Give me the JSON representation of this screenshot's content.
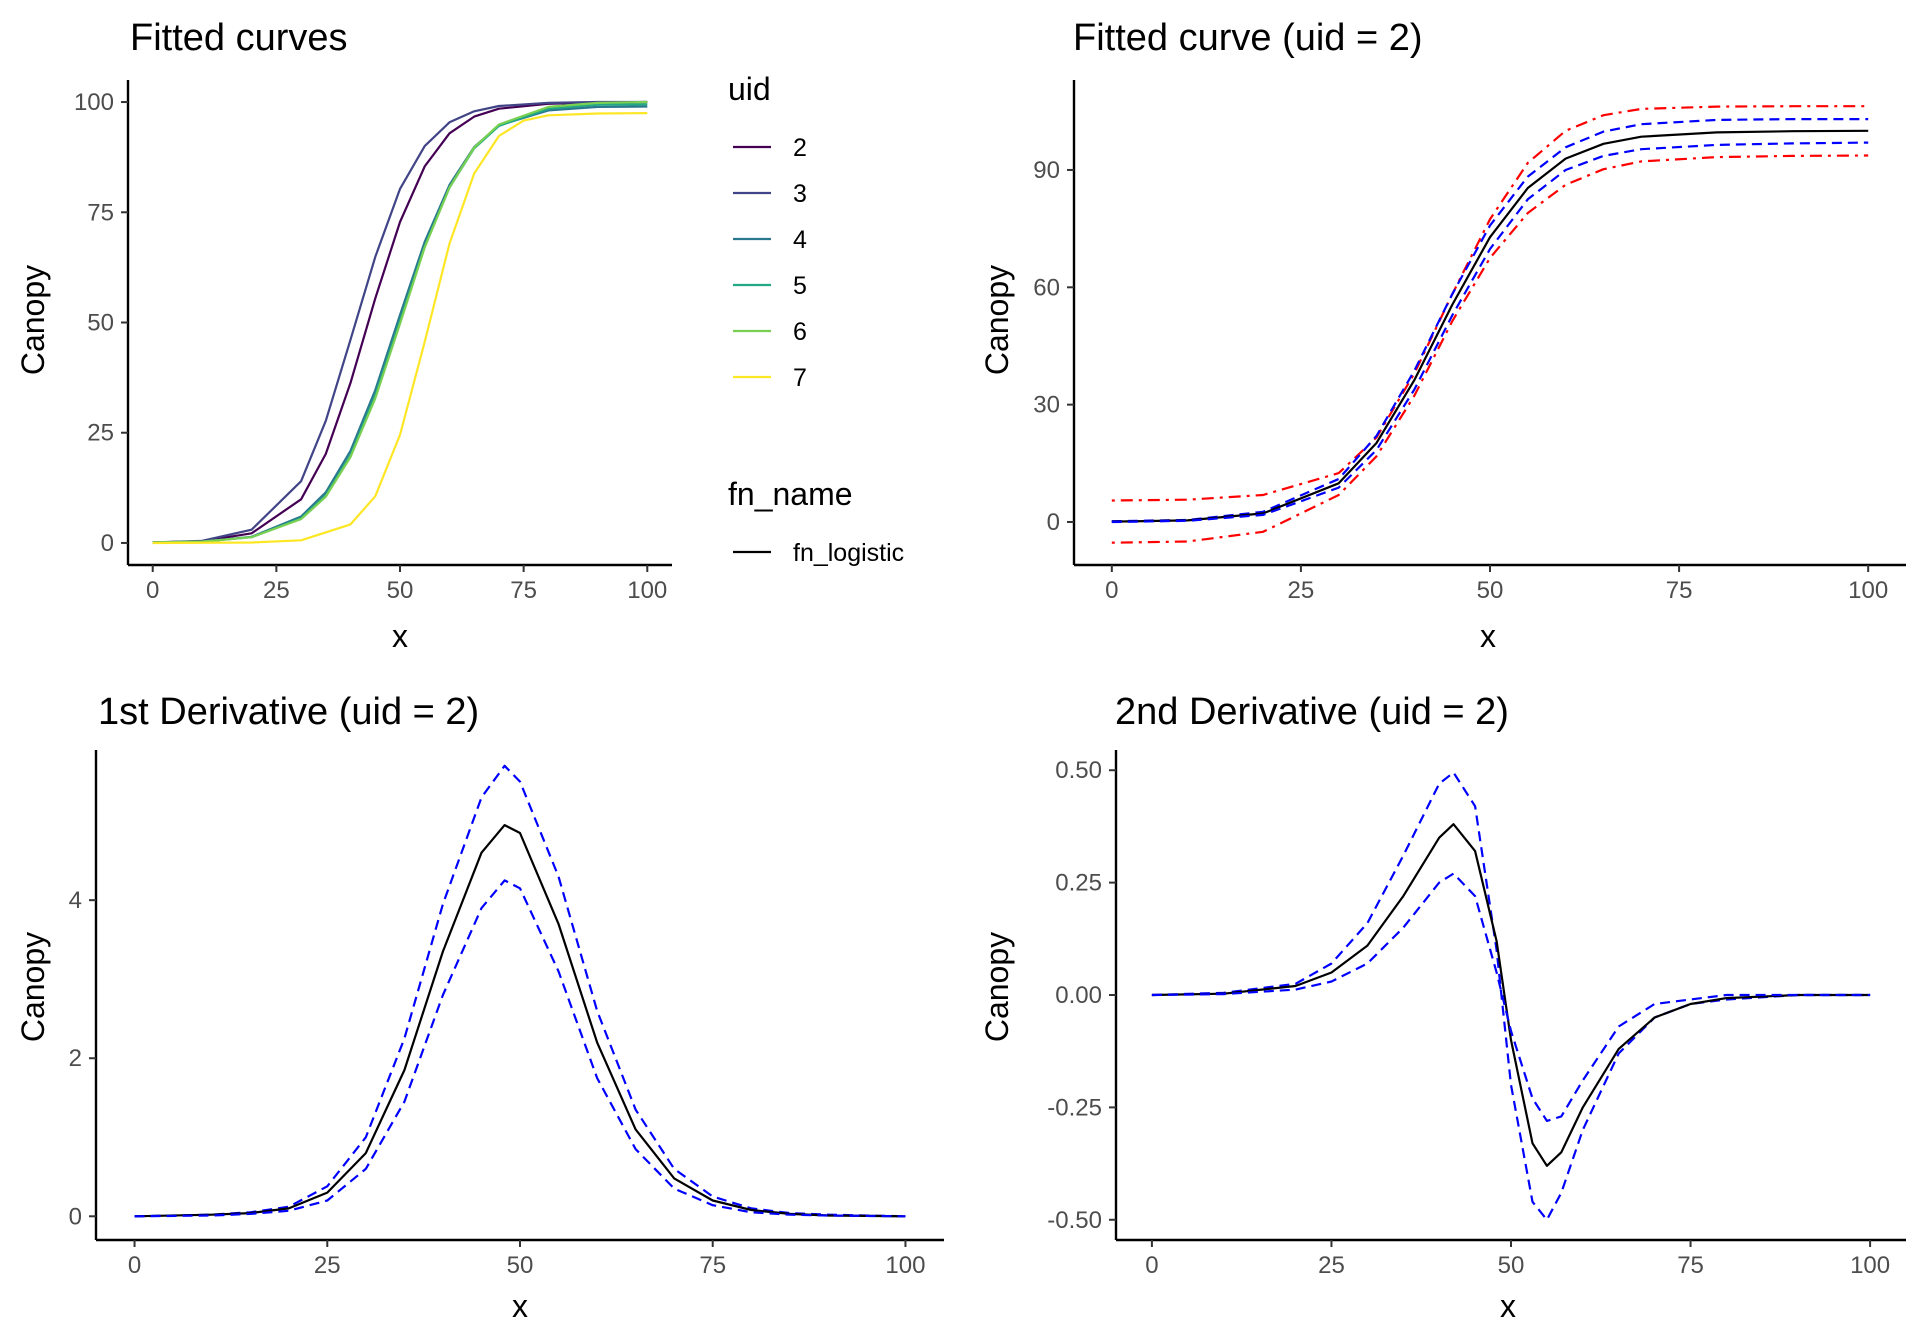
{
  "chart_data": [
    {
      "type": "line",
      "title": "Fitted curves",
      "xlabel": "x",
      "ylabel": "Canopy",
      "xlim": [
        -5,
        105
      ],
      "ylim": [
        -5,
        105
      ],
      "x_ticks": [
        0,
        25,
        50,
        75,
        100
      ],
      "y_ticks": [
        0,
        25,
        50,
        75,
        100
      ],
      "grid": false,
      "legend": {
        "placement": "right",
        "color_title": "uid",
        "linetype_title": "fn_name",
        "linetype_entries": [
          "fn_logistic"
        ]
      },
      "series": [
        {
          "name": "2",
          "color": "#440154",
          "x": [
            0,
            10,
            20,
            30,
            35,
            40,
            45,
            50,
            55,
            60,
            65,
            70,
            80,
            90,
            100
          ],
          "y": [
            0.1,
            0.4,
            2.2,
            9.9,
            20.2,
            36.3,
            55.5,
            72.8,
            85.4,
            92.9,
            96.7,
            98.5,
            99.6,
            99.9,
            100.0
          ]
        },
        {
          "name": "3",
          "color": "#414487",
          "x": [
            0,
            10,
            20,
            30,
            35,
            40,
            45,
            50,
            55,
            60,
            65,
            70,
            80,
            90,
            100
          ],
          "y": [
            0.1,
            0.5,
            3.0,
            14.0,
            27.7,
            46.1,
            64.9,
            80.3,
            90.0,
            95.4,
            97.9,
            99.1,
            99.8,
            100.0,
            100.0
          ]
        },
        {
          "name": "4",
          "color": "#2A788E",
          "x": [
            0,
            10,
            20,
            30,
            35,
            40,
            45,
            50,
            55,
            60,
            65,
            70,
            80,
            90,
            100
          ],
          "y": [
            0.1,
            0.3,
            1.4,
            6.0,
            11.5,
            20.9,
            34.7,
            51.7,
            68.3,
            81.2,
            89.8,
            94.7,
            98.1,
            98.9,
            99.0
          ]
        },
        {
          "name": "5",
          "color": "#22A884",
          "x": [
            0,
            10,
            20,
            30,
            35,
            40,
            45,
            50,
            55,
            60,
            65,
            70,
            80,
            90,
            100
          ],
          "y": [
            0.1,
            0.3,
            1.3,
            5.6,
            10.8,
            19.9,
            33.5,
            50.4,
            67.3,
            80.6,
            89.5,
            94.6,
            98.5,
            99.4,
            99.5
          ]
        },
        {
          "name": "6",
          "color": "#7AD151",
          "x": [
            0,
            10,
            20,
            30,
            35,
            40,
            45,
            50,
            55,
            60,
            65,
            70,
            80,
            90,
            100
          ],
          "y": [
            0.1,
            0.3,
            1.3,
            5.4,
            10.5,
            19.5,
            32.8,
            49.7,
            67.0,
            80.6,
            89.7,
            94.9,
            98.9,
            99.8,
            100.0
          ]
        },
        {
          "name": "7",
          "color": "#FDE725",
          "x": [
            0,
            20,
            30,
            40,
            45,
            50,
            55,
            60,
            65,
            70,
            75,
            80,
            90,
            100
          ],
          "y": [
            0.0,
            0.1,
            0.6,
            4.2,
            10.6,
            24.5,
            45.6,
            67.9,
            83.8,
            92.3,
            95.8,
            97.0,
            97.4,
            97.5
          ]
        }
      ]
    },
    {
      "type": "line",
      "title": "Fitted curve (uid = 2)",
      "xlabel": "x",
      "ylabel": "Canopy",
      "xlim": [
        -5,
        105
      ],
      "ylim": [
        -11,
        113
      ],
      "x_ticks": [
        0,
        25,
        50,
        75,
        100
      ],
      "y_ticks": [
        0,
        30,
        60,
        90
      ],
      "grid": false,
      "series": [
        {
          "color": "#ff0000",
          "style": "dotdash",
          "x": [
            0,
            10,
            20,
            30,
            35,
            40,
            45,
            50,
            55,
            60,
            65,
            70,
            80,
            90,
            100
          ],
          "y": [
            5.5,
            5.7,
            6.9,
            12.5,
            21.6,
            38.0,
            58.2,
            77.4,
            91.8,
            100.0,
            104.0,
            105.6,
            106.2,
            106.3,
            106.3
          ]
        },
        {
          "color": "#0000ff",
          "style": "dashed",
          "x": [
            0,
            10,
            20,
            30,
            35,
            40,
            45,
            50,
            55,
            60,
            65,
            70,
            80,
            90,
            100
          ],
          "y": [
            0.2,
            0.5,
            2.6,
            11.0,
            22.0,
            38.7,
            58.2,
            75.8,
            88.3,
            95.8,
            99.8,
            101.7,
            102.8,
            103.0,
            103.0
          ]
        },
        {
          "color": "#000000",
          "style": "solid",
          "x": [
            0,
            10,
            20,
            30,
            35,
            40,
            45,
            50,
            55,
            60,
            65,
            70,
            80,
            90,
            100
          ],
          "y": [
            0.1,
            0.4,
            2.2,
            9.9,
            20.2,
            36.3,
            55.5,
            72.8,
            85.4,
            92.9,
            96.7,
            98.5,
            99.6,
            99.9,
            100.0
          ]
        },
        {
          "color": "#0000ff",
          "style": "dashed",
          "x": [
            0,
            10,
            20,
            30,
            35,
            40,
            45,
            50,
            55,
            60,
            65,
            70,
            80,
            90,
            100
          ],
          "y": [
            0.0,
            0.3,
            1.8,
            8.8,
            18.4,
            33.9,
            52.8,
            69.8,
            82.5,
            90.0,
            93.6,
            95.3,
            96.4,
            96.8,
            97.0
          ]
        },
        {
          "color": "#ff0000",
          "style": "dotdash",
          "x": [
            0,
            10,
            20,
            30,
            35,
            40,
            45,
            50,
            55,
            60,
            65,
            70,
            80,
            90,
            100
          ],
          "y": [
            -5.3,
            -5.0,
            -2.5,
            6.9,
            16.8,
            32.3,
            51.3,
            67.5,
            79.0,
            86.2,
            90.2,
            92.2,
            93.3,
            93.6,
            93.7
          ]
        }
      ]
    },
    {
      "type": "line",
      "title": "1st Derivative (uid = 2)",
      "xlabel": "x",
      "ylabel": "Canopy",
      "xlim": [
        -5,
        105
      ],
      "ylim": [
        -0.3,
        5.9
      ],
      "x_ticks": [
        0,
        25,
        50,
        75,
        100
      ],
      "y_ticks": [
        0,
        2,
        4
      ],
      "grid": false,
      "series": [
        {
          "color": "#0000ff",
          "style": "dashed",
          "x": [
            0,
            10,
            15,
            20,
            25,
            30,
            35,
            40,
            45,
            48,
            50,
            55,
            60,
            65,
            70,
            75,
            80,
            85,
            90,
            100
          ],
          "y": [
            0.0,
            0.02,
            0.05,
            0.12,
            0.38,
            1.0,
            2.25,
            3.95,
            5.3,
            5.7,
            5.5,
            4.3,
            2.6,
            1.35,
            0.6,
            0.25,
            0.1,
            0.04,
            0.02,
            0.0
          ]
        },
        {
          "color": "#000000",
          "style": "solid",
          "x": [
            0,
            10,
            15,
            20,
            25,
            30,
            35,
            40,
            45,
            48,
            50,
            55,
            60,
            65,
            70,
            75,
            80,
            85,
            90,
            100
          ],
          "y": [
            0.0,
            0.02,
            0.04,
            0.1,
            0.3,
            0.8,
            1.85,
            3.35,
            4.6,
            4.95,
            4.85,
            3.7,
            2.2,
            1.1,
            0.48,
            0.2,
            0.08,
            0.03,
            0.01,
            0.0
          ]
        },
        {
          "color": "#0000ff",
          "style": "dashed",
          "x": [
            0,
            10,
            15,
            20,
            25,
            30,
            35,
            40,
            45,
            48,
            50,
            55,
            60,
            65,
            70,
            75,
            80,
            85,
            90,
            100
          ],
          "y": [
            0.0,
            0.01,
            0.03,
            0.07,
            0.2,
            0.6,
            1.45,
            2.8,
            3.9,
            4.25,
            4.15,
            3.1,
            1.75,
            0.85,
            0.35,
            0.14,
            0.05,
            0.02,
            0.01,
            0.0
          ]
        }
      ]
    },
    {
      "type": "line",
      "title": "2nd Derivative (uid = 2)",
      "xlabel": "x",
      "ylabel": "Canopy",
      "xlim": [
        -5,
        105
      ],
      "ylim": [
        -0.545,
        0.545
      ],
      "x_ticks": [
        0,
        25,
        50,
        75,
        100
      ],
      "y_ticks": [
        -0.5,
        -0.25,
        0.0,
        0.25,
        0.5
      ],
      "y_tick_labels": [
        "-0.50",
        "-0.25",
        "0.00",
        "0.25",
        "0.50"
      ],
      "grid": false,
      "series": [
        {
          "color": "#0000ff",
          "style": "dashed",
          "x": [
            0,
            10,
            20,
            25,
            30,
            35,
            40,
            42,
            45,
            48,
            50,
            53,
            55,
            57,
            60,
            65,
            70,
            75,
            80,
            90,
            100
          ],
          "y": [
            0.0,
            0.005,
            0.025,
            0.07,
            0.16,
            0.31,
            0.47,
            0.495,
            0.42,
            0.1,
            -0.2,
            -0.46,
            -0.5,
            -0.44,
            -0.3,
            -0.13,
            -0.05,
            -0.02,
            -0.01,
            0.0,
            0.0
          ]
        },
        {
          "color": "#000000",
          "style": "solid",
          "x": [
            0,
            10,
            20,
            25,
            30,
            35,
            40,
            42,
            45,
            48,
            50,
            53,
            55,
            57,
            60,
            65,
            70,
            75,
            80,
            90,
            100
          ],
          "y": [
            0.0,
            0.003,
            0.02,
            0.05,
            0.11,
            0.22,
            0.35,
            0.38,
            0.32,
            0.12,
            -0.1,
            -0.33,
            -0.38,
            -0.35,
            -0.25,
            -0.12,
            -0.05,
            -0.02,
            -0.007,
            0.0,
            0.0
          ]
        },
        {
          "color": "#0000ff",
          "style": "dashed",
          "x": [
            0,
            10,
            20,
            25,
            30,
            35,
            40,
            42,
            45,
            48,
            50,
            53,
            55,
            57,
            60,
            65,
            70,
            75,
            80,
            90,
            100
          ],
          "y": [
            0.0,
            0.002,
            0.012,
            0.03,
            0.07,
            0.15,
            0.25,
            0.27,
            0.22,
            0.05,
            -0.08,
            -0.23,
            -0.28,
            -0.27,
            -0.19,
            -0.07,
            -0.02,
            -0.01,
            0.0,
            0.0,
            0.0
          ]
        }
      ]
    }
  ]
}
